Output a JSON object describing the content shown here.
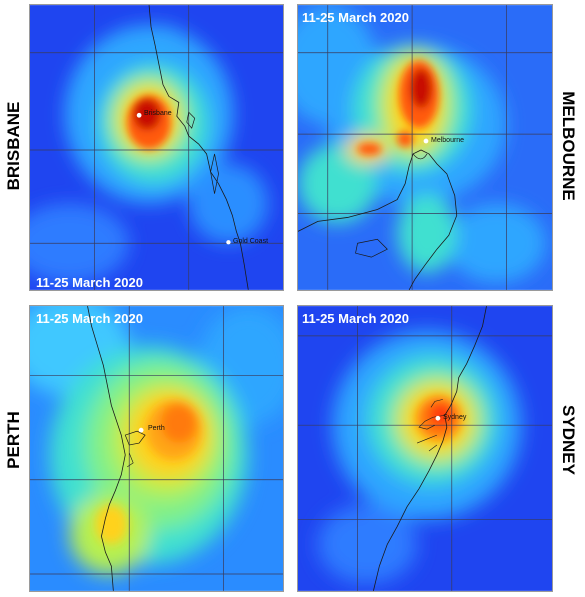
{
  "panels": [
    {
      "id": "brisbane",
      "region_label": "BRISBANE",
      "date_label": "11-25 March 2020",
      "cities": [
        {
          "name": "Brisbane",
          "marker": "white-dot"
        },
        {
          "name": "Gold Coast",
          "marker": "white-dot"
        }
      ]
    },
    {
      "id": "melbourne",
      "region_label": "MELBOURNE",
      "date_label": "11-25 March 2020",
      "cities": [
        {
          "name": "Melbourne",
          "marker": "white-dot"
        }
      ]
    },
    {
      "id": "perth",
      "region_label": "PERTH",
      "date_label": "11-25 March 2020",
      "cities": [
        {
          "name": "Perth",
          "marker": "white-dot"
        }
      ]
    },
    {
      "id": "sydney",
      "region_label": "SYDNEY",
      "date_label": "11-25 March 2020",
      "cities": [
        {
          "name": "Sydney",
          "marker": "white-dot"
        }
      ]
    }
  ],
  "colors": {
    "low": "#1f45f0",
    "mid_low": "#2fa6ff",
    "mid": "#3fe0d0",
    "mid_high": "#b8f050",
    "high": "#ffd21f",
    "very_high": "#ff5a10",
    "peak": "#c81000",
    "coastline": "#1a1a1a",
    "grid": "#3a3a5a"
  },
  "map_style": "concentration heat map with coastline and lat/lon grid"
}
